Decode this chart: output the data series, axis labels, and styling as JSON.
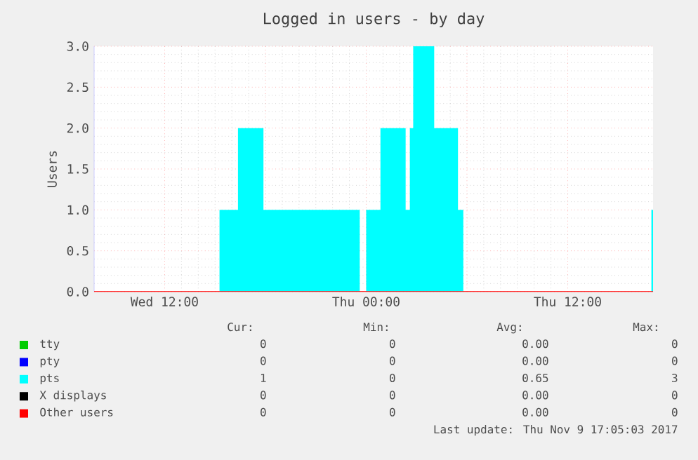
{
  "chart_data": {
    "type": "area",
    "title": "Logged in users - by day",
    "ylabel": "Users",
    "xlim": [
      "2017-11-08T07:48",
      "2017-11-09T17:05"
    ],
    "ylim": [
      0,
      3
    ],
    "xticks": [
      {
        "value": "2017-11-08T12:00",
        "label": "Wed 12:00"
      },
      {
        "value": "2017-11-08T18:00",
        "label": null
      },
      {
        "value": "2017-11-09T00:00",
        "label": "Thu 00:00"
      },
      {
        "value": "2017-11-09T06:00",
        "label": null
      },
      {
        "value": "2017-11-09T12:00",
        "label": "Thu 12:00"
      }
    ],
    "yticks": [
      {
        "value": 0,
        "label": "0.0"
      },
      {
        "value": 0.5,
        "label": "0.5"
      },
      {
        "value": 1,
        "label": "1.0"
      },
      {
        "value": 1.5,
        "label": "1.5"
      },
      {
        "value": 2,
        "label": "2.0"
      },
      {
        "value": 2.5,
        "label": "2.5"
      },
      {
        "value": 3,
        "label": "3.0"
      }
    ],
    "grid": true,
    "legend": "bottom",
    "series": [
      {
        "name": "tty",
        "color": "#00cc00",
        "type": "line"
      },
      {
        "name": "pty",
        "color": "#0000ff",
        "type": "line"
      },
      {
        "name": "pts",
        "color": "#00ffff",
        "x": [
          "2017-11-08T07:48",
          "2017-11-08T15:16",
          "2017-11-08T15:16",
          "2017-11-08T16:22",
          "2017-11-08T16:22",
          "2017-11-08T17:53",
          "2017-11-08T17:53",
          "2017-11-08T23:37",
          "2017-11-08T23:37",
          "2017-11-09T00:00",
          "2017-11-09T00:00",
          "2017-11-09T00:51",
          "2017-11-09T00:51",
          "2017-11-09T02:21",
          "2017-11-09T02:21",
          "2017-11-09T02:36",
          "2017-11-09T02:36",
          "2017-11-09T02:48",
          "2017-11-09T02:48",
          "2017-11-09T04:03",
          "2017-11-09T04:03",
          "2017-11-09T05:28",
          "2017-11-09T05:28",
          "2017-11-09T05:47",
          "2017-11-09T05:47",
          "2017-11-09T16:59",
          "2017-11-09T16:59",
          "2017-11-09T17:05"
        ],
        "values": [
          0,
          0,
          1,
          1,
          2,
          2,
          1,
          1,
          0,
          0,
          1,
          1,
          2,
          2,
          1,
          1,
          2,
          2,
          3,
          3,
          2,
          2,
          1,
          1,
          0,
          0,
          1,
          1
        ]
      },
      {
        "name": "X displays",
        "color": "#000000",
        "type": "line"
      },
      {
        "name": "Other users",
        "color": "#ff0000",
        "type": "line",
        "x": [
          "2017-11-08T07:48",
          "2017-11-09T17:05"
        ],
        "values": [
          0,
          0
        ]
      }
    ],
    "annotations": [
      "Cur:",
      "Min:",
      "Avg:",
      "Max:",
      "0",
      "0",
      "0.00",
      "0",
      "0",
      "0",
      "0.00",
      "0",
      "1",
      "0",
      "0.65",
      "3",
      "0",
      "0",
      "0.00",
      "0",
      "0",
      "0",
      "0.00",
      "0",
      "Last update: Thu Nov  9 17:05:03 2017"
    ]
  }
}
